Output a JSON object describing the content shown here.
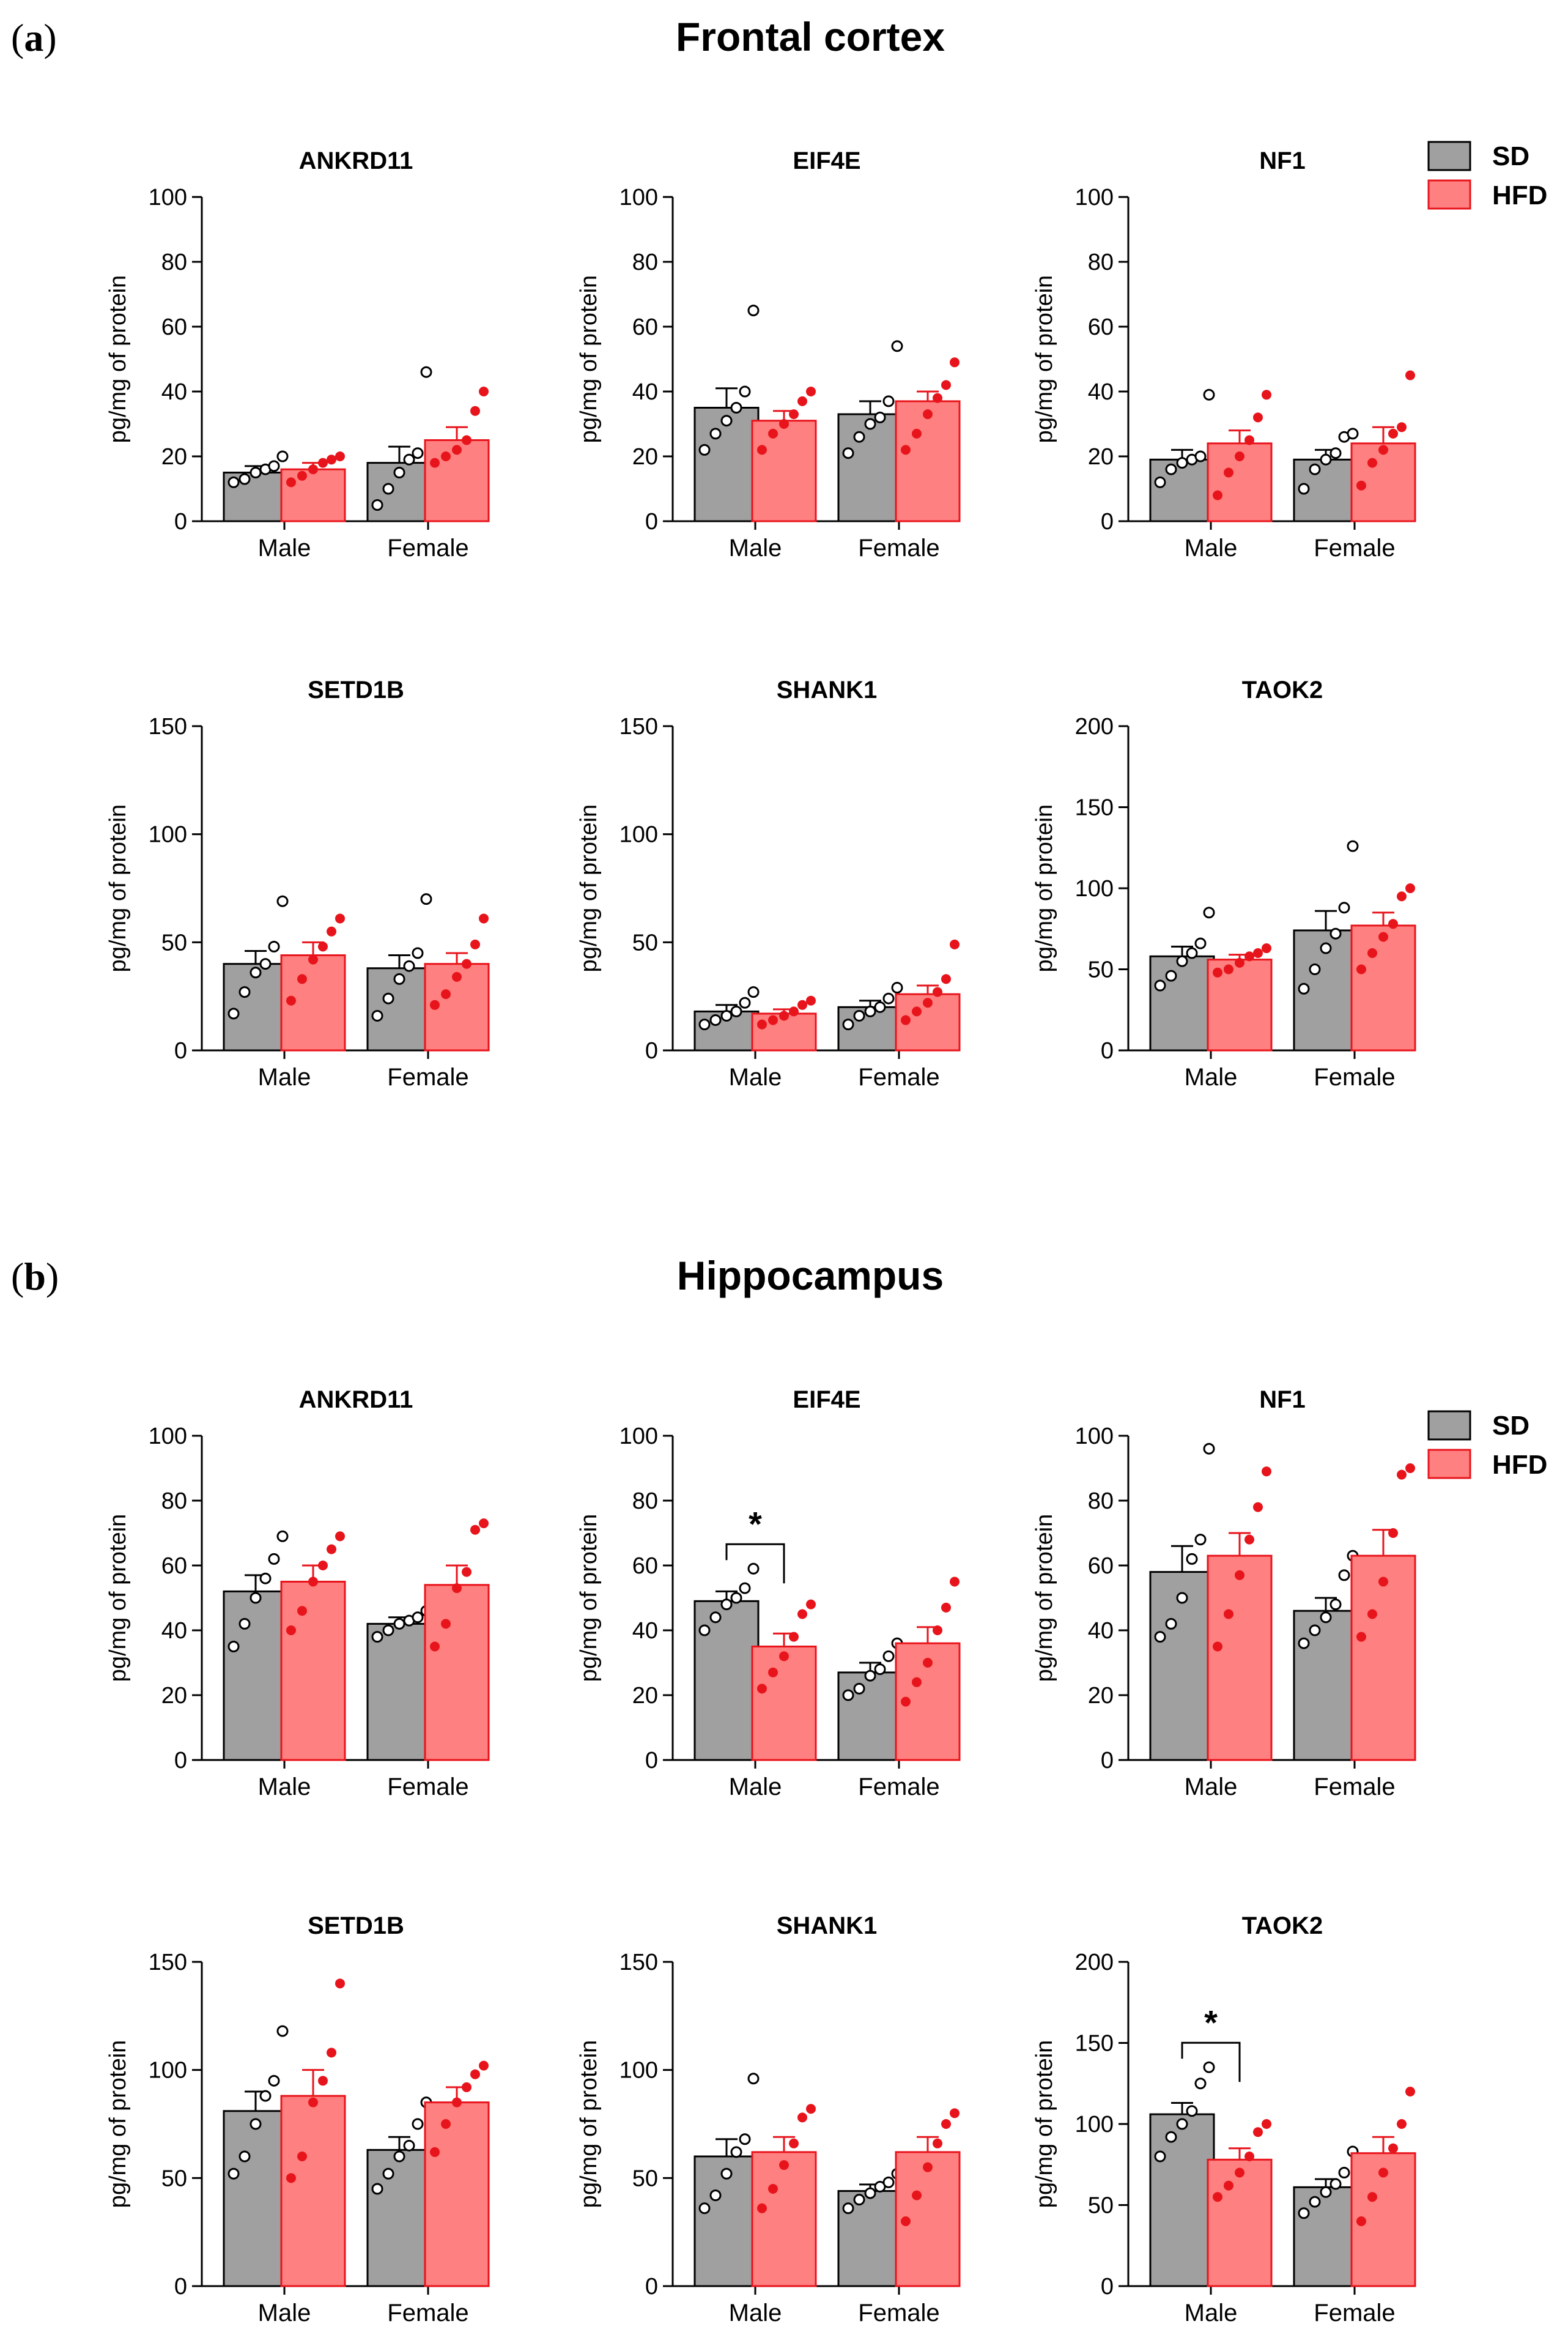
{
  "panels": [
    {
      "letter_open": "(",
      "letter": "a",
      "letter_close": ")",
      "title": "Frontal cortex"
    },
    {
      "letter_open": "(",
      "letter": "b",
      "letter_close": ")",
      "title": "Hippocampus"
    }
  ],
  "legend": {
    "sd_label": "SD",
    "hfd_label": "HFD",
    "sd_color": "#a0a0a0",
    "hfd_color": "#ff8080",
    "hfd_point_color": "#e8141c"
  },
  "chart_data": [
    {
      "panel": "a",
      "title": "ANKRD11",
      "type": "bar",
      "ylabel": "pg/mg of protein",
      "ylim": [
        0,
        100
      ],
      "yticks": [
        0,
        20,
        40,
        60,
        80,
        100
      ],
      "categories": [
        "Male",
        "Female"
      ],
      "series": [
        {
          "name": "SD",
          "values": [
            15,
            18
          ],
          "sem": [
            2,
            5
          ],
          "points": [
            [
              12,
              13,
              15,
              16,
              17,
              20
            ],
            [
              5,
              10,
              15,
              19,
              21,
              46
            ]
          ]
        },
        {
          "name": "HFD",
          "values": [
            16,
            25
          ],
          "sem": [
            2,
            4
          ],
          "points": [
            [
              12,
              14,
              16,
              18,
              19,
              20
            ],
            [
              18,
              20,
              22,
              25,
              34,
              40
            ]
          ]
        }
      ]
    },
    {
      "panel": "a",
      "title": "EIF4E",
      "type": "bar",
      "ylabel": "pg/mg of protein",
      "ylim": [
        0,
        100
      ],
      "yticks": [
        0,
        20,
        40,
        60,
        80,
        100
      ],
      "categories": [
        "Male",
        "Female"
      ],
      "series": [
        {
          "name": "SD",
          "values": [
            35,
            33
          ],
          "sem": [
            6,
            4
          ],
          "points": [
            [
              22,
              27,
              31,
              35,
              40,
              65
            ],
            [
              21,
              26,
              30,
              32,
              37,
              54
            ]
          ]
        },
        {
          "name": "HFD",
          "values": [
            31,
            37
          ],
          "sem": [
            3,
            3
          ],
          "points": [
            [
              22,
              27,
              30,
              33,
              37,
              40
            ],
            [
              22,
              27,
              33,
              38,
              42,
              49
            ]
          ]
        }
      ]
    },
    {
      "panel": "a",
      "title": "NF1",
      "type": "bar",
      "ylabel": "pg/mg of protein",
      "ylim": [
        0,
        100
      ],
      "yticks": [
        0,
        20,
        40,
        60,
        80,
        100
      ],
      "categories": [
        "Male",
        "Female"
      ],
      "series": [
        {
          "name": "SD",
          "values": [
            19,
            19
          ],
          "sem": [
            3,
            3
          ],
          "points": [
            [
              12,
              16,
              18,
              19,
              20,
              39
            ],
            [
              10,
              16,
              19,
              21,
              26,
              27
            ]
          ]
        },
        {
          "name": "HFD",
          "values": [
            24,
            24
          ],
          "sem": [
            4,
            5
          ],
          "points": [
            [
              8,
              15,
              20,
              25,
              32,
              39
            ],
            [
              11,
              18,
              22,
              27,
              29,
              45
            ]
          ]
        }
      ]
    },
    {
      "panel": "a",
      "title": "SETD1B",
      "type": "bar",
      "ylabel": "pg/mg of protein",
      "ylim": [
        0,
        150
      ],
      "yticks": [
        0,
        50,
        100,
        150
      ],
      "categories": [
        "Male",
        "Female"
      ],
      "series": [
        {
          "name": "SD",
          "values": [
            40,
            38
          ],
          "sem": [
            6,
            6
          ],
          "points": [
            [
              17,
              27,
              36,
              40,
              48,
              69
            ],
            [
              16,
              24,
              33,
              39,
              45,
              70
            ]
          ]
        },
        {
          "name": "HFD",
          "values": [
            44,
            40
          ],
          "sem": [
            6,
            5
          ],
          "points": [
            [
              23,
              33,
              42,
              48,
              55,
              61
            ],
            [
              21,
              26,
              34,
              40,
              49,
              61
            ]
          ]
        }
      ]
    },
    {
      "panel": "a",
      "title": "SHANK1",
      "type": "bar",
      "ylabel": "pg/mg of protein",
      "ylim": [
        0,
        150
      ],
      "yticks": [
        0,
        50,
        100,
        150
      ],
      "categories": [
        "Male",
        "Female"
      ],
      "series": [
        {
          "name": "SD",
          "values": [
            18,
            20
          ],
          "sem": [
            3,
            3
          ],
          "points": [
            [
              12,
              14,
              16,
              18,
              22,
              27
            ],
            [
              12,
              16,
              18,
              20,
              24,
              29
            ]
          ]
        },
        {
          "name": "HFD",
          "values": [
            17,
            26
          ],
          "sem": [
            2,
            4
          ],
          "points": [
            [
              12,
              14,
              16,
              18,
              21,
              23
            ],
            [
              14,
              18,
              22,
              27,
              33,
              49
            ]
          ]
        }
      ]
    },
    {
      "panel": "a",
      "title": "TAOK2",
      "type": "bar",
      "ylabel": "pg/mg of protein",
      "ylim": [
        0,
        200
      ],
      "yticks": [
        0,
        50,
        100,
        150,
        200
      ],
      "categories": [
        "Male",
        "Female"
      ],
      "series": [
        {
          "name": "SD",
          "values": [
            58,
            74
          ],
          "sem": [
            6,
            12
          ],
          "points": [
            [
              40,
              46,
              55,
              60,
              66,
              85
            ],
            [
              38,
              50,
              63,
              72,
              88,
              126
            ]
          ]
        },
        {
          "name": "HFD",
          "values": [
            56,
            77
          ],
          "sem": [
            3,
            8
          ],
          "points": [
            [
              48,
              50,
              54,
              58,
              60,
              63
            ],
            [
              50,
              60,
              70,
              78,
              95,
              100
            ]
          ]
        }
      ]
    },
    {
      "panel": "b",
      "title": "ANKRD11",
      "type": "bar",
      "ylabel": "pg/mg of protein",
      "ylim": [
        0,
        100
      ],
      "yticks": [
        0,
        20,
        40,
        60,
        80,
        100
      ],
      "categories": [
        "Male",
        "Female"
      ],
      "series": [
        {
          "name": "SD",
          "values": [
            52,
            42
          ],
          "sem": [
            5,
            2
          ],
          "points": [
            [
              35,
              42,
              50,
              56,
              62,
              69
            ],
            [
              38,
              40,
              42,
              43,
              44,
              46
            ]
          ]
        },
        {
          "name": "HFD",
          "values": [
            55,
            54
          ],
          "sem": [
            5,
            6
          ],
          "points": [
            [
              40,
              46,
              55,
              60,
              65,
              69
            ],
            [
              35,
              42,
              53,
              58,
              71,
              73
            ]
          ]
        }
      ]
    },
    {
      "panel": "b",
      "title": "EIF4E",
      "type": "bar",
      "ylabel": "pg/mg of protein",
      "ylim": [
        0,
        100
      ],
      "yticks": [
        0,
        20,
        40,
        60,
        80,
        100
      ],
      "categories": [
        "Male",
        "Female"
      ],
      "series": [
        {
          "name": "SD",
          "values": [
            49,
            27
          ],
          "sem": [
            3,
            3
          ],
          "points": [
            [
              40,
              44,
              48,
              50,
              53,
              59
            ],
            [
              20,
              22,
              26,
              28,
              32,
              36
            ]
          ]
        },
        {
          "name": "HFD",
          "values": [
            35,
            36
          ],
          "sem": [
            4,
            5
          ],
          "points": [
            [
              22,
              27,
              32,
              38,
              45,
              48
            ],
            [
              18,
              24,
              30,
              40,
              47,
              55
            ]
          ]
        }
      ]
    },
    {
      "panel": "b",
      "title": "NF1",
      "type": "bar",
      "ylabel": "pg/mg of protein",
      "ylim": [
        0,
        100
      ],
      "yticks": [
        0,
        20,
        40,
        60,
        80,
        100
      ],
      "categories": [
        "Male",
        "Female"
      ],
      "series": [
        {
          "name": "SD",
          "values": [
            58,
            46
          ],
          "sem": [
            8,
            4
          ],
          "points": [
            [
              38,
              42,
              50,
              62,
              68,
              96
            ],
            [
              36,
              40,
              44,
              48,
              57,
              63
            ]
          ]
        },
        {
          "name": "HFD",
          "values": [
            63,
            63
          ],
          "sem": [
            7,
            8
          ],
          "points": [
            [
              35,
              45,
              57,
              68,
              78,
              89
            ],
            [
              38,
              45,
              55,
              70,
              88,
              90
            ]
          ]
        }
      ]
    },
    {
      "panel": "b",
      "title": "SETD1B",
      "type": "bar",
      "ylabel": "pg/mg of protein",
      "ylim": [
        0,
        150
      ],
      "yticks": [
        0,
        50,
        100,
        150
      ],
      "categories": [
        "Male",
        "Female"
      ],
      "series": [
        {
          "name": "SD",
          "values": [
            81,
            63
          ],
          "sem": [
            9,
            6
          ],
          "points": [
            [
              52,
              60,
              75,
              88,
              95,
              118
            ],
            [
              45,
              52,
              60,
              65,
              75,
              85
            ]
          ]
        },
        {
          "name": "HFD",
          "values": [
            88,
            85
          ],
          "sem": [
            12,
            7
          ],
          "points": [
            [
              50,
              60,
              85,
              95,
              108,
              140
            ],
            [
              62,
              75,
              85,
              92,
              98,
              102
            ]
          ]
        }
      ]
    },
    {
      "panel": "b",
      "title": "SHANK1",
      "type": "bar",
      "ylabel": "pg/mg of protein",
      "ylim": [
        0,
        150
      ],
      "yticks": [
        0,
        50,
        100,
        150
      ],
      "categories": [
        "Male",
        "Female"
      ],
      "series": [
        {
          "name": "SD",
          "values": [
            60,
            44
          ],
          "sem": [
            8,
            3
          ],
          "points": [
            [
              36,
              42,
              52,
              62,
              68,
              96
            ],
            [
              36,
              40,
              43,
              46,
              48,
              52
            ]
          ]
        },
        {
          "name": "HFD",
          "values": [
            62,
            62
          ],
          "sem": [
            7,
            7
          ],
          "points": [
            [
              36,
              45,
              56,
              66,
              78,
              82
            ],
            [
              30,
              42,
              55,
              66,
              75,
              80
            ]
          ]
        }
      ]
    },
    {
      "panel": "b",
      "title": "TAOK2",
      "type": "bar",
      "ylabel": "pg/mg of protein",
      "ylim": [
        0,
        200
      ],
      "yticks": [
        0,
        50,
        100,
        150,
        200
      ],
      "categories": [
        "Male",
        "Female"
      ],
      "series": [
        {
          "name": "SD",
          "values": [
            106,
            61
          ],
          "sem": [
            7,
            5
          ],
          "points": [
            [
              80,
              92,
              100,
              108,
              125,
              135
            ],
            [
              45,
              52,
              58,
              63,
              70,
              83
            ]
          ]
        },
        {
          "name": "HFD",
          "values": [
            78,
            82
          ],
          "sem": [
            7,
            10
          ],
          "points": [
            [
              55,
              62,
              70,
              80,
              95,
              100
            ],
            [
              40,
              55,
              70,
              85,
              100,
              120
            ]
          ]
        }
      ]
    }
  ],
  "significance": [
    {
      "chart_index": 7,
      "category_index": 0,
      "label": "*"
    },
    {
      "chart_index": 11,
      "category_index": 0,
      "label": "*"
    }
  ]
}
